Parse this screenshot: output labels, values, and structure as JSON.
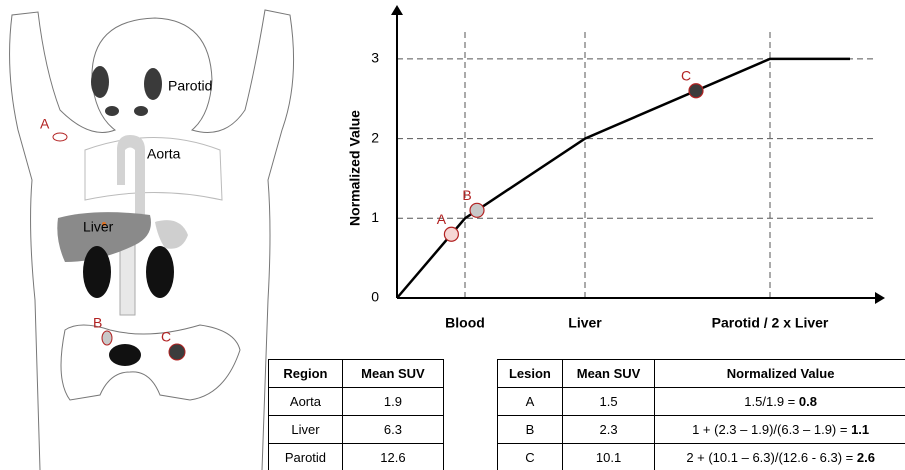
{
  "diagram": {
    "labels": [
      "Parotid",
      "Aorta",
      "Liver",
      "A",
      "B",
      "C"
    ]
  },
  "chart_data": {
    "type": "line",
    "y_label": "Normalized Value",
    "categories": [
      null,
      "Blood",
      "Liver",
      "Parotid / 2 x Liver",
      null
    ],
    "series": [
      {
        "color": "#000000",
        "values": [
          0,
          1,
          2,
          3,
          3
        ]
      }
    ],
    "ylim": [
      0,
      3.55
    ],
    "yticks": [
      0,
      1,
      2,
      3
    ],
    "grid": true,
    "points": [
      {
        "label": "A",
        "value": 0.8,
        "color": "#f6d6d4"
      },
      {
        "label": "B",
        "value": 1.1,
        "color": "#c8c8c8"
      },
      {
        "label": "C",
        "value": 2.6,
        "color": "#3c3c3c"
      }
    ]
  },
  "region_table": {
    "header": [
      "Region",
      "Mean SUV"
    ],
    "rows": [
      [
        "Aorta",
        "1.9"
      ],
      [
        "Liver",
        "6.3"
      ],
      [
        "Parotid",
        "12.6"
      ]
    ]
  },
  "lesion_table": {
    "header": [
      "Lesion",
      "Mean SUV",
      "Normalized Value"
    ],
    "rows": [
      [
        "A",
        "1.5",
        {
          "text": "1.5/1.9 = ",
          "bold": "0.8"
        }
      ],
      [
        "B",
        "2.3",
        {
          "text": "1 + (2.3 – 1.9)/(6.3 – 1.9) = ",
          "bold": "1.1"
        }
      ],
      [
        "C",
        "10.1",
        {
          "text": "2 + (10.1 – 6.3)/(12.6 - 6.3) = ",
          "bold": "2.6"
        }
      ]
    ]
  }
}
